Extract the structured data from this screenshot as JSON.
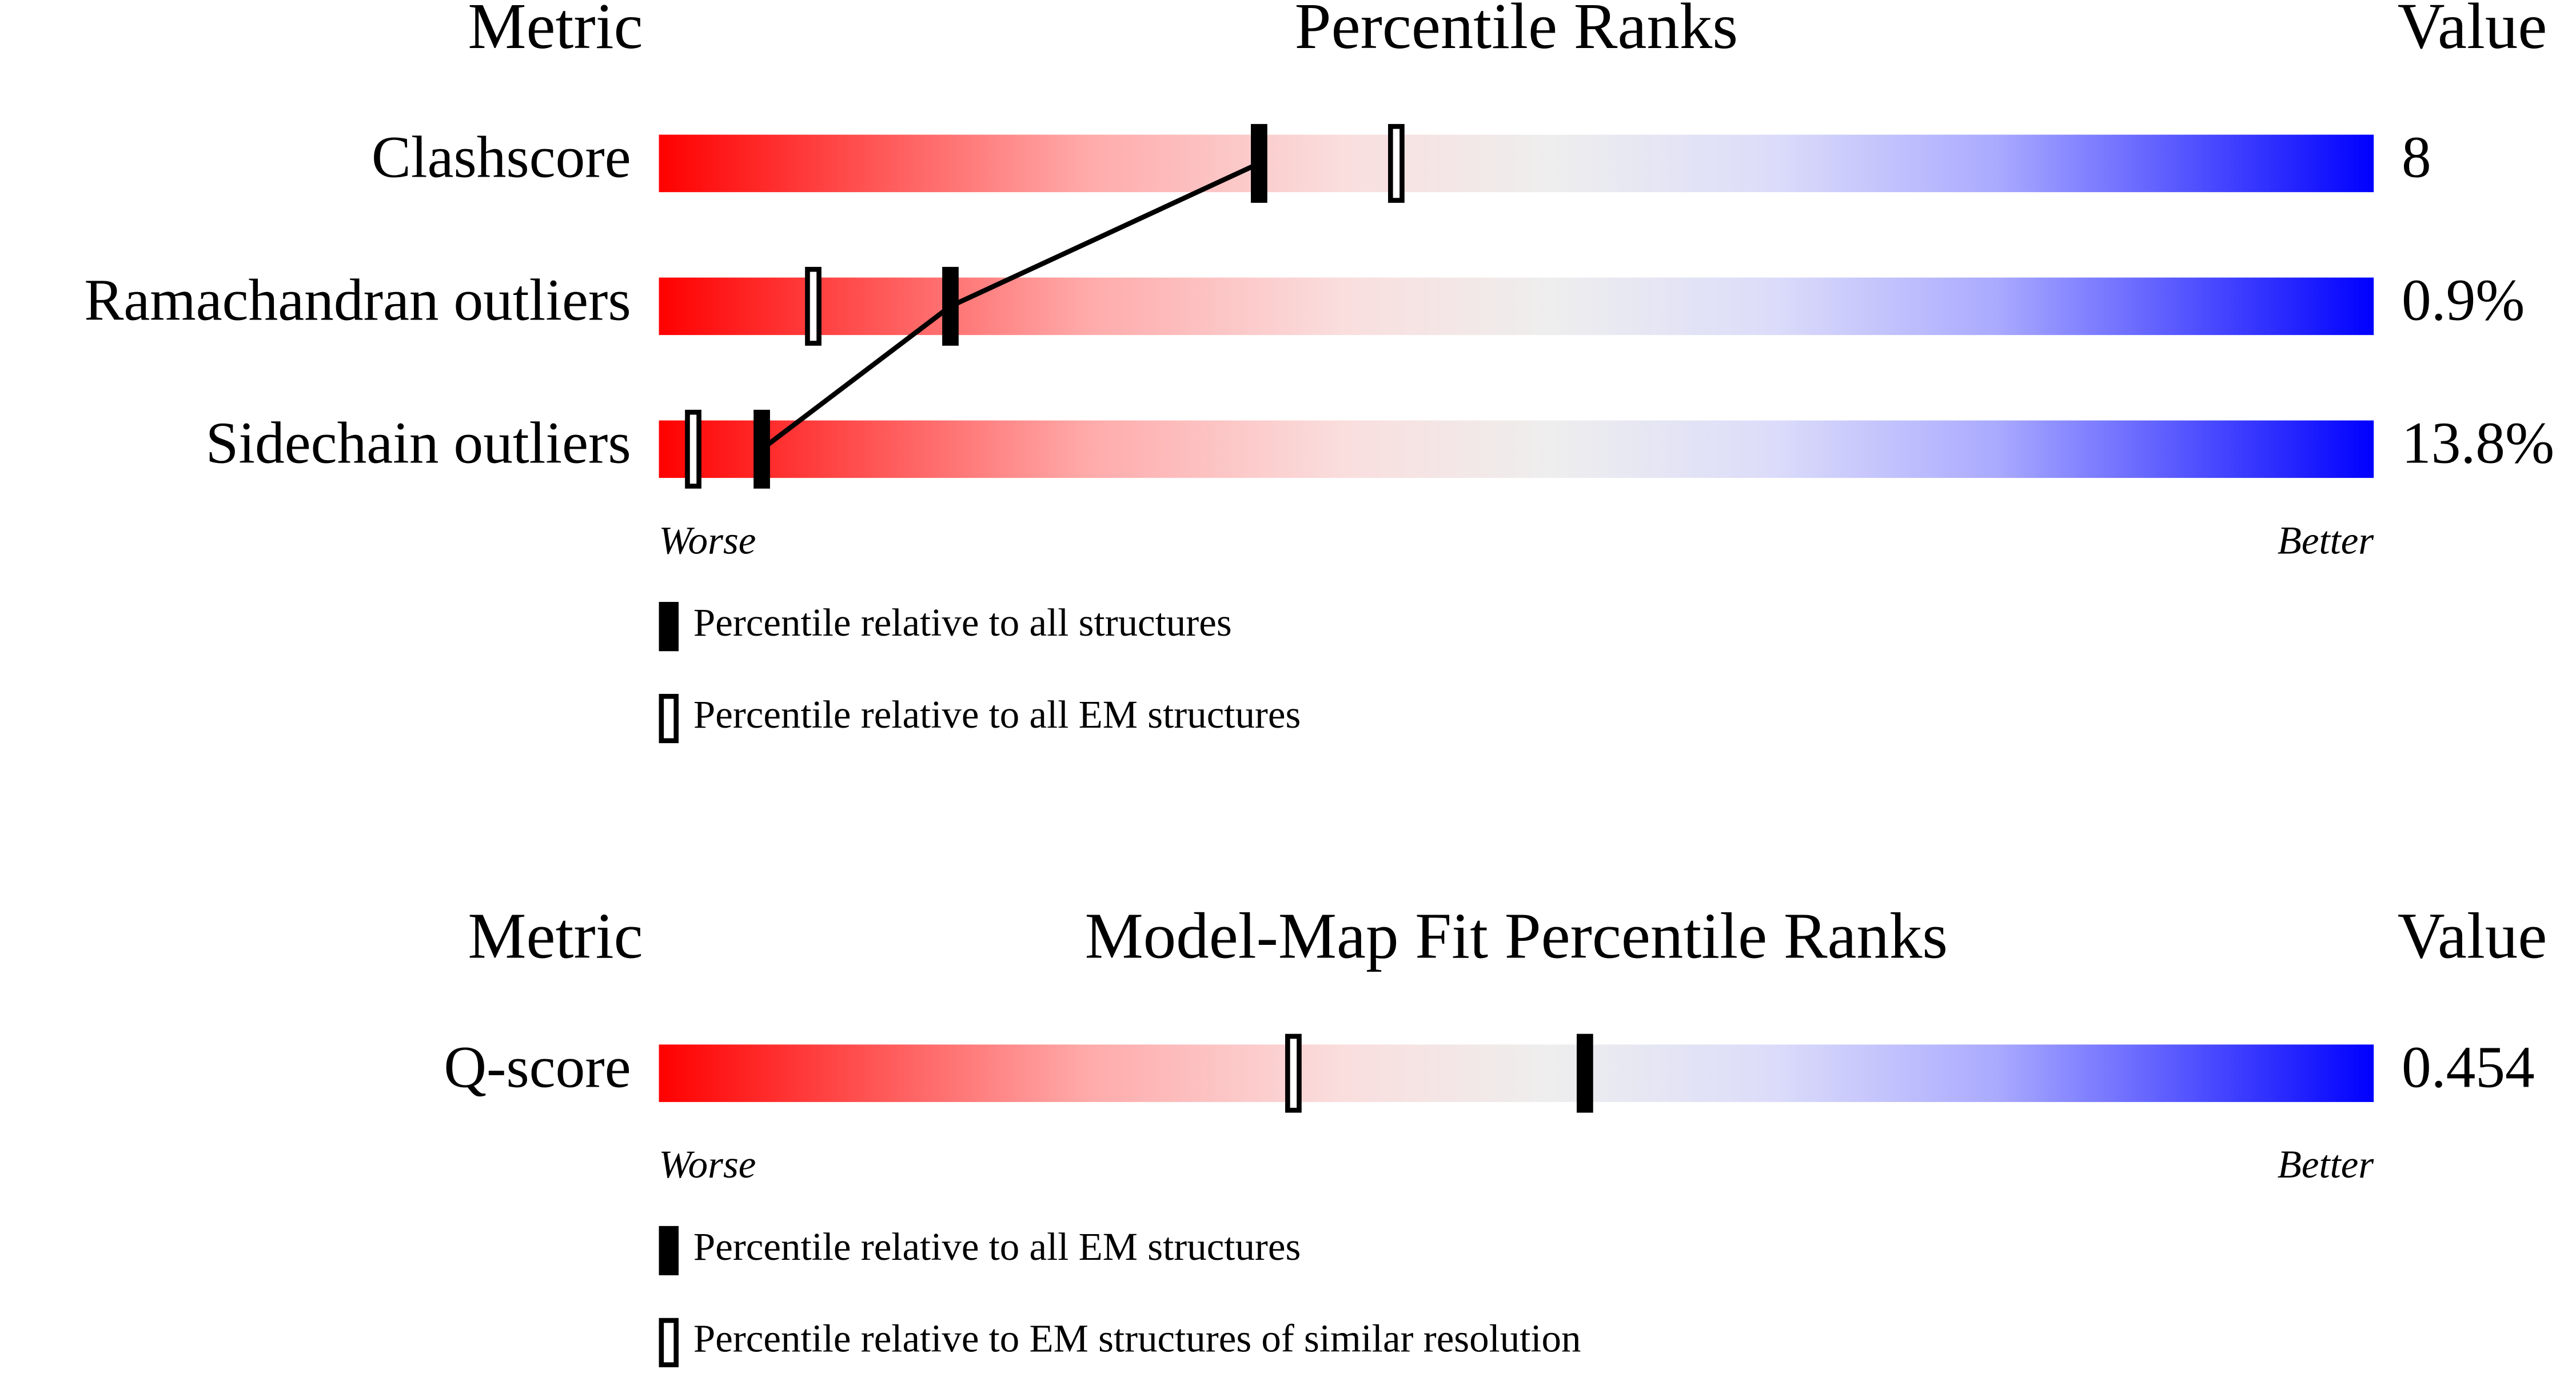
{
  "chart_data": [
    {
      "type": "percentile-slider",
      "header": {
        "metric": "Metric",
        "title": "Percentile Ranks",
        "value": "Value"
      },
      "categories": [
        "Clashscore",
        "Ramachandran outliers",
        "Sidechain outliers"
      ],
      "value_texts": [
        "8",
        "0.9%",
        "13.8%"
      ],
      "xlim": [
        0,
        100
      ],
      "low_label": "Worse",
      "high_label": "Better",
      "series": [
        {
          "name": "Percentile relative to all structures",
          "style": "filled",
          "connected": true,
          "color": "#000000",
          "values": [
            35,
            17,
            6
          ]
        },
        {
          "name": "Percentile relative to all EM structures",
          "style": "outline",
          "connected": false,
          "color": "#000000",
          "values": [
            43,
            9,
            2
          ]
        }
      ]
    },
    {
      "type": "percentile-slider",
      "header": {
        "metric": "Metric",
        "title": "Model-Map Fit Percentile Ranks",
        "value": "Value"
      },
      "categories": [
        "Q-score"
      ],
      "value_texts": [
        "0.454"
      ],
      "xlim": [
        0,
        100
      ],
      "low_label": "Worse",
      "high_label": "Better",
      "series": [
        {
          "name": "Percentile relative to all EM structures",
          "style": "filled",
          "connected": true,
          "color": "#000000",
          "values": [
            54
          ]
        },
        {
          "name": "Percentile relative to EM structures of similar resolution",
          "style": "outline",
          "connected": false,
          "color": "#000000",
          "values": [
            37
          ]
        }
      ]
    }
  ]
}
